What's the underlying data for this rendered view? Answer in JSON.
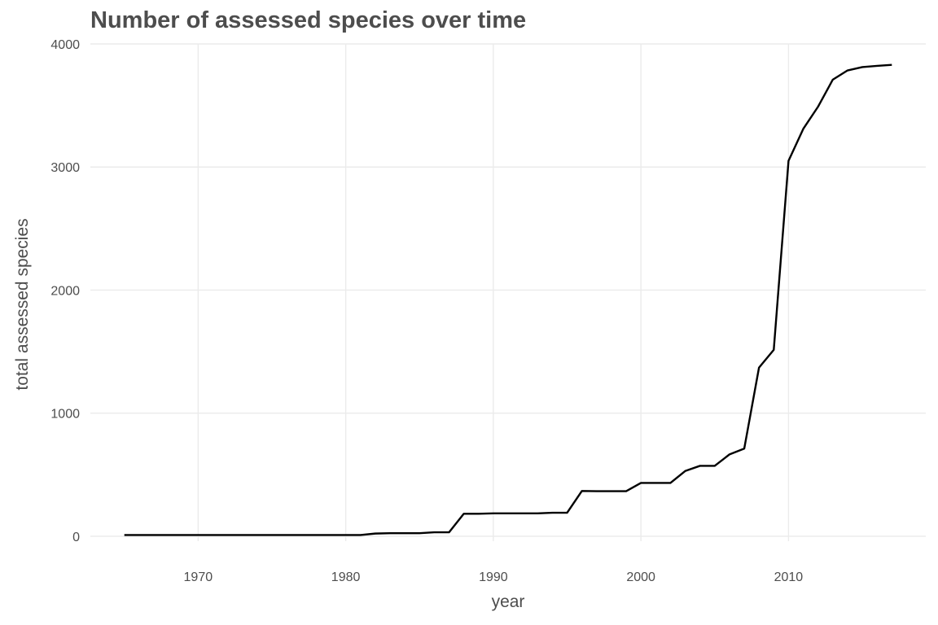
{
  "chart_data": {
    "type": "line",
    "title": "Number of assessed species over time",
    "xlabel": "year",
    "ylabel": "total assessed species",
    "xlim": [
      1962.7,
      2019.3
    ],
    "ylim": [
      -40,
      4000
    ],
    "x_ticks": [
      1970,
      1980,
      1990,
      2000,
      2010
    ],
    "y_ticks": [
      0,
      1000,
      2000,
      3000,
      4000
    ],
    "grid": true,
    "legend": "none",
    "line_color": "#000000",
    "series": [
      {
        "x": [
          1965,
          1966,
          1967,
          1968,
          1969,
          1970,
          1971,
          1972,
          1973,
          1974,
          1975,
          1976,
          1977,
          1978,
          1979,
          1980,
          1981,
          1982,
          1983,
          1984,
          1985,
          1986,
          1987,
          1988,
          1989,
          1990,
          1991,
          1992,
          1993,
          1994,
          1995,
          1996,
          1997,
          1998,
          1999,
          2000,
          2001,
          2002,
          2003,
          2004,
          2005,
          2006,
          2007,
          2008,
          2009,
          2010,
          2011,
          2012,
          2013,
          2014,
          2015,
          2016,
          2017
        ],
        "values": [
          10,
          10,
          10,
          10,
          10,
          10,
          10,
          10,
          10,
          10,
          10,
          10,
          10,
          10,
          10,
          10,
          10,
          22,
          25,
          25,
          25,
          32,
          32,
          183,
          183,
          186,
          186,
          186,
          186,
          191,
          191,
          368,
          366,
          366,
          366,
          433,
          433,
          433,
          530,
          572,
          572,
          665,
          712,
          1370,
          1515,
          3050,
          3310,
          3490,
          3710,
          3785,
          3812,
          3822,
          3830
        ]
      }
    ]
  }
}
